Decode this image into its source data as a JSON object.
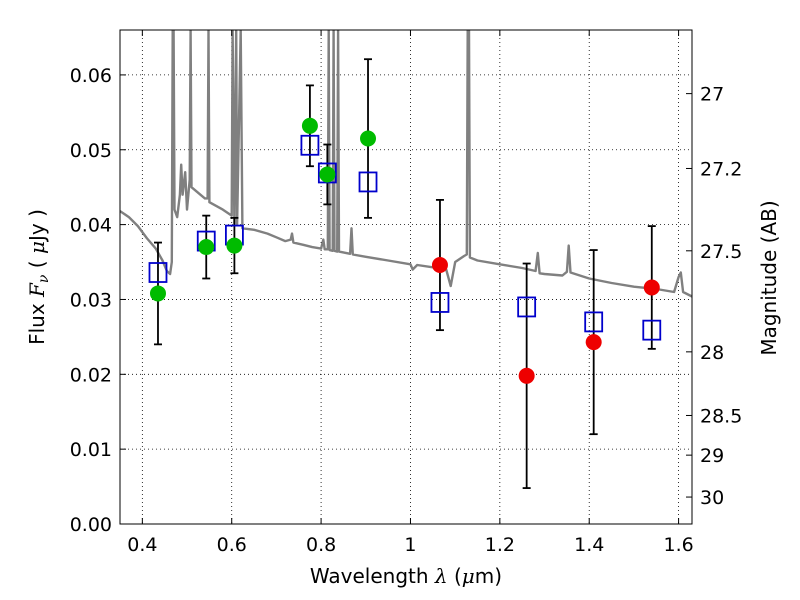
{
  "chart_data": {
    "type": "scatter",
    "title": "",
    "xlabel": {
      "text": "Wavelength",
      "symbol": "λ",
      "unit_open": "(",
      "unit_mu": "μ",
      "unit_rest": "m)"
    },
    "ylabel": {
      "text": "Flux",
      "symbol": "F",
      "subscript": "ν",
      "unit_open": "(",
      "unit_mu": "μ",
      "unit_rest": "Jy )"
    },
    "y2label": "Magnitude (AB)",
    "xlim": [
      0.35,
      1.63
    ],
    "ylim": [
      0.0,
      0.066
    ],
    "grid": true,
    "x_ticks": [
      0.4,
      0.6,
      0.8,
      1.0,
      1.2,
      1.4,
      1.6
    ],
    "x_tick_labels": [
      "0.4",
      "0.6",
      "0.8",
      "1",
      "1.2",
      "1.4",
      "1.6"
    ],
    "y_ticks": [
      0.0,
      0.01,
      0.02,
      0.03,
      0.04,
      0.05,
      0.06
    ],
    "y_tick_labels": [
      "0.00",
      "0.01",
      "0.02",
      "0.03",
      "0.04",
      "0.05",
      "0.06"
    ],
    "y2_ticks": [
      {
        "flux": 0.0575,
        "label": "27"
      },
      {
        "flux": 0.0475,
        "label": "27.2"
      },
      {
        "flux": 0.0365,
        "label": "27.5"
      },
      {
        "flux": 0.023,
        "label": "28"
      },
      {
        "flux": 0.0145,
        "label": "28.5"
      },
      {
        "flux": 0.0092,
        "label": "29"
      },
      {
        "flux": 0.0036,
        "label": "30"
      }
    ],
    "series": [
      {
        "marker": "circle",
        "color": "#00bb00",
        "points": [
          {
            "x": 0.435,
            "y": 0.0308,
            "err": 0.0068
          },
          {
            "x": 0.543,
            "y": 0.037,
            "err": 0.0042
          },
          {
            "x": 0.606,
            "y": 0.0372,
            "err": 0.0037
          },
          {
            "x": 0.775,
            "y": 0.0532,
            "err": 0.0054
          },
          {
            "x": 0.814,
            "y": 0.0467,
            "err": 0.004
          },
          {
            "x": 0.905,
            "y": 0.0515,
            "err": 0.0106
          }
        ]
      },
      {
        "marker": "circle",
        "color": "#ee0000",
        "points": [
          {
            "x": 1.066,
            "y": 0.0346,
            "err": 0.0087
          },
          {
            "x": 1.26,
            "y": 0.0198,
            "err": 0.015
          },
          {
            "x": 1.41,
            "y": 0.0243,
            "err": 0.0123
          },
          {
            "x": 1.54,
            "y": 0.0316,
            "err": 0.0082
          }
        ]
      },
      {
        "marker": "open-square",
        "color": "#0000cc",
        "points": [
          {
            "x": 0.435,
            "y": 0.0336
          },
          {
            "x": 0.543,
            "y": 0.0378
          },
          {
            "x": 0.606,
            "y": 0.0386
          },
          {
            "x": 0.775,
            "y": 0.0506
          },
          {
            "x": 0.814,
            "y": 0.0469
          },
          {
            "x": 0.905,
            "y": 0.0457
          },
          {
            "x": 1.066,
            "y": 0.0296
          },
          {
            "x": 1.26,
            "y": 0.029
          },
          {
            "x": 1.41,
            "y": 0.027
          },
          {
            "x": 1.54,
            "y": 0.0259
          }
        ]
      },
      {
        "marker": "line",
        "color": "#808080",
        "points": [
          {
            "x": 0.35,
            "y": 0.0418
          },
          {
            "x": 0.37,
            "y": 0.041
          },
          {
            "x": 0.39,
            "y": 0.0398
          },
          {
            "x": 0.41,
            "y": 0.0382
          },
          {
            "x": 0.43,
            "y": 0.0368
          },
          {
            "x": 0.445,
            "y": 0.0352
          },
          {
            "x": 0.455,
            "y": 0.0338
          },
          {
            "x": 0.462,
            "y": 0.0334
          },
          {
            "x": 0.466,
            "y": 0.035
          },
          {
            "x": 0.468,
            "y": 0.066
          },
          {
            "x": 0.47,
            "y": 0.066
          },
          {
            "x": 0.472,
            "y": 0.042
          },
          {
            "x": 0.478,
            "y": 0.041
          },
          {
            "x": 0.484,
            "y": 0.044
          },
          {
            "x": 0.487,
            "y": 0.048
          },
          {
            "x": 0.49,
            "y": 0.044
          },
          {
            "x": 0.496,
            "y": 0.047
          },
          {
            "x": 0.5,
            "y": 0.042
          },
          {
            "x": 0.506,
            "y": 0.046
          },
          {
            "x": 0.508,
            "y": 0.066
          },
          {
            "x": 0.51,
            "y": 0.045
          },
          {
            "x": 0.53,
            "y": 0.044
          },
          {
            "x": 0.54,
            "y": 0.0435
          },
          {
            "x": 0.546,
            "y": 0.0435
          },
          {
            "x": 0.548,
            "y": 0.066
          },
          {
            "x": 0.55,
            "y": 0.043
          },
          {
            "x": 0.58,
            "y": 0.042
          },
          {
            "x": 0.6,
            "y": 0.0412
          },
          {
            "x": 0.602,
            "y": 0.066
          },
          {
            "x": 0.606,
            "y": 0.04
          },
          {
            "x": 0.61,
            "y": 0.066
          },
          {
            "x": 0.612,
            "y": 0.04
          },
          {
            "x": 0.62,
            "y": 0.066
          },
          {
            "x": 0.624,
            "y": 0.0395
          },
          {
            "x": 0.65,
            "y": 0.0393
          },
          {
            "x": 0.68,
            "y": 0.0388
          },
          {
            "x": 0.7,
            "y": 0.0383
          },
          {
            "x": 0.72,
            "y": 0.0378
          },
          {
            "x": 0.732,
            "y": 0.038
          },
          {
            "x": 0.735,
            "y": 0.0388
          },
          {
            "x": 0.738,
            "y": 0.0376
          },
          {
            "x": 0.76,
            "y": 0.0373
          },
          {
            "x": 0.78,
            "y": 0.037
          },
          {
            "x": 0.8,
            "y": 0.0368
          },
          {
            "x": 0.805,
            "y": 0.038
          },
          {
            "x": 0.808,
            "y": 0.0367
          },
          {
            "x": 0.815,
            "y": 0.0367
          },
          {
            "x": 0.817,
            "y": 0.066
          },
          {
            "x": 0.819,
            "y": 0.0366
          },
          {
            "x": 0.826,
            "y": 0.0365
          },
          {
            "x": 0.828,
            "y": 0.066
          },
          {
            "x": 0.83,
            "y": 0.0365
          },
          {
            "x": 0.836,
            "y": 0.0364
          },
          {
            "x": 0.838,
            "y": 0.066
          },
          {
            "x": 0.84,
            "y": 0.0364
          },
          {
            "x": 0.865,
            "y": 0.0361
          },
          {
            "x": 0.868,
            "y": 0.0395
          },
          {
            "x": 0.871,
            "y": 0.036
          },
          {
            "x": 0.9,
            "y": 0.0357
          },
          {
            "x": 0.95,
            "y": 0.0352
          },
          {
            "x": 1.0,
            "y": 0.0347
          },
          {
            "x": 1.005,
            "y": 0.034
          },
          {
            "x": 1.015,
            "y": 0.0346
          },
          {
            "x": 1.05,
            "y": 0.0343
          },
          {
            "x": 1.08,
            "y": 0.034
          },
          {
            "x": 1.09,
            "y": 0.0318
          },
          {
            "x": 1.1,
            "y": 0.035
          },
          {
            "x": 1.12,
            "y": 0.0358
          },
          {
            "x": 1.126,
            "y": 0.036
          },
          {
            "x": 1.128,
            "y": 0.066
          },
          {
            "x": 1.131,
            "y": 0.066
          },
          {
            "x": 1.133,
            "y": 0.0356
          },
          {
            "x": 1.15,
            "y": 0.0352
          },
          {
            "x": 1.2,
            "y": 0.0347
          },
          {
            "x": 1.25,
            "y": 0.0342
          },
          {
            "x": 1.28,
            "y": 0.0338
          },
          {
            "x": 1.285,
            "y": 0.0362
          },
          {
            "x": 1.289,
            "y": 0.0335
          },
          {
            "x": 1.3,
            "y": 0.0334
          },
          {
            "x": 1.34,
            "y": 0.0332
          },
          {
            "x": 1.35,
            "y": 0.0337
          },
          {
            "x": 1.354,
            "y": 0.0372
          },
          {
            "x": 1.358,
            "y": 0.0336
          },
          {
            "x": 1.4,
            "y": 0.0328
          },
          {
            "x": 1.45,
            "y": 0.0322
          },
          {
            "x": 1.5,
            "y": 0.0317
          },
          {
            "x": 1.55,
            "y": 0.0314
          },
          {
            "x": 1.59,
            "y": 0.031
          },
          {
            "x": 1.6,
            "y": 0.033
          },
          {
            "x": 1.605,
            "y": 0.0336
          },
          {
            "x": 1.61,
            "y": 0.031
          },
          {
            "x": 1.63,
            "y": 0.0304
          }
        ]
      }
    ]
  }
}
